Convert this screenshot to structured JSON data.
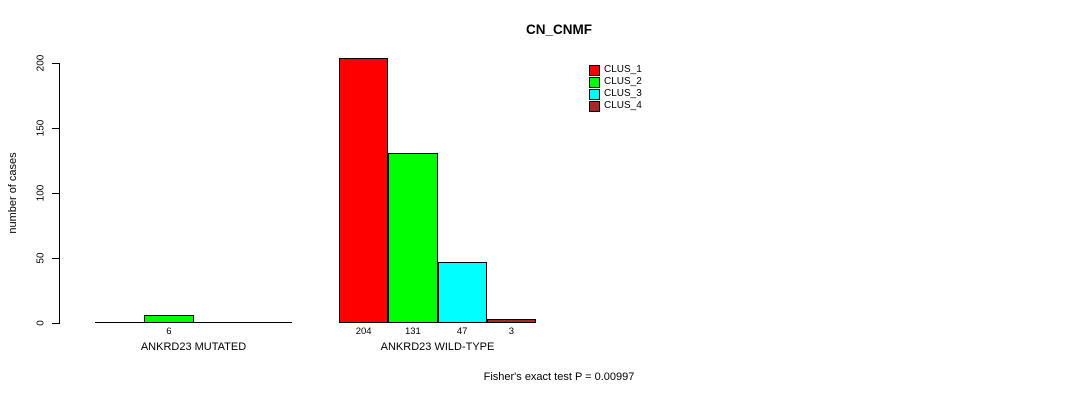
{
  "chart_data": {
    "type": "bar",
    "title": "CN_CNMF",
    "xlabel": "",
    "ylabel": "number of cases",
    "ylim": [
      0,
      204
    ],
    "yticks": [
      0,
      50,
      100,
      150,
      200
    ],
    "grid": false,
    "legend_position": "top-right-of-plot",
    "series": [
      "CLUS_1",
      "CLUS_2",
      "CLUS_3",
      "CLUS_4"
    ],
    "colors": [
      "#FF0000",
      "#00FF00",
      "#00FFFF",
      "#A52A2A"
    ],
    "groups": [
      {
        "label": "ANKRD23 MUTATED",
        "values": [
          0,
          6,
          0,
          0
        ],
        "bar_labels": [
          "",
          "6",
          "",
          ""
        ]
      },
      {
        "label": "ANKRD23 WILD-TYPE",
        "values": [
          204,
          131,
          47,
          3
        ],
        "bar_labels": [
          "204",
          "131",
          "47",
          "3"
        ]
      }
    ],
    "annotation": "Fisher's exact test P = 0.00997"
  }
}
